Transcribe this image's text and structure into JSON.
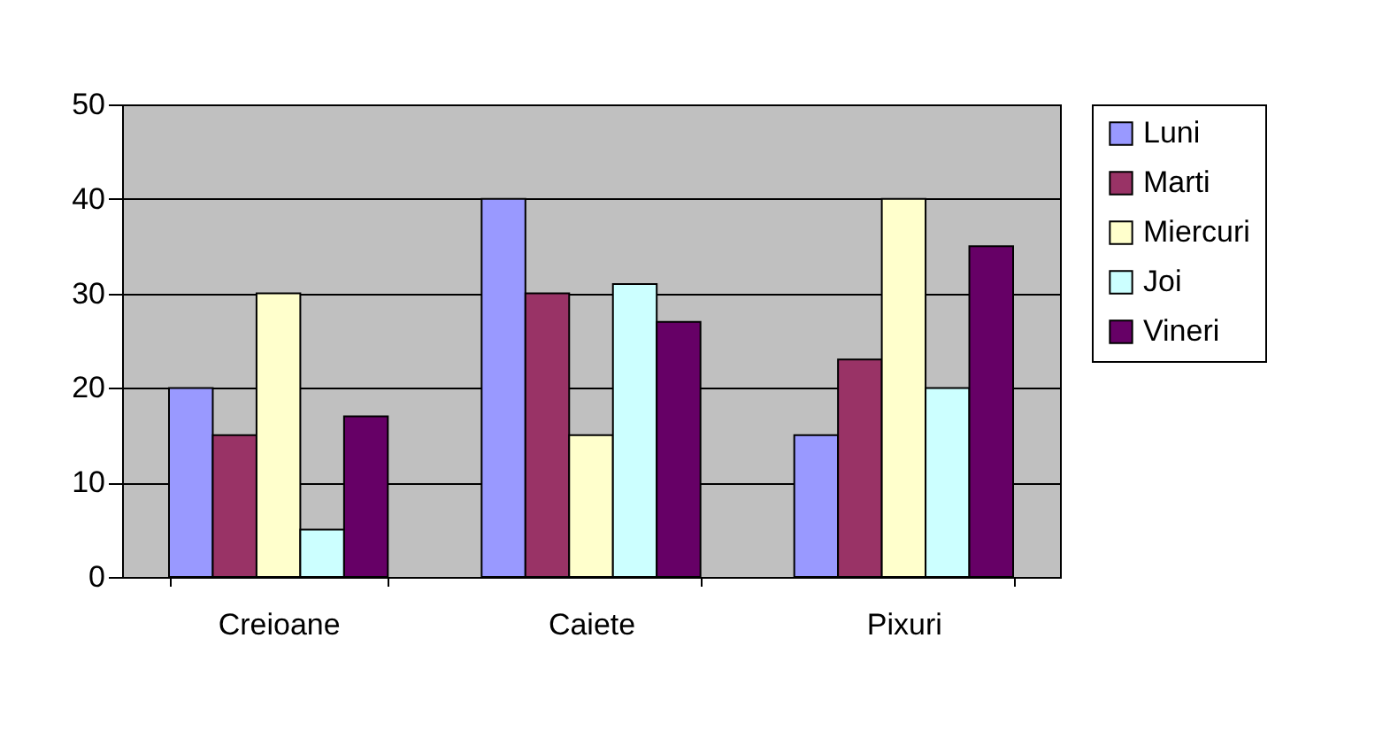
{
  "chart_data": {
    "type": "bar",
    "categories": [
      "Creioane",
      "Caiete",
      "Pixuri"
    ],
    "series": [
      {
        "name": "Luni",
        "color": "#9999ff",
        "values": [
          20,
          40,
          15
        ]
      },
      {
        "name": "Marti",
        "color": "#993366",
        "values": [
          15,
          30,
          23
        ]
      },
      {
        "name": "Miercuri",
        "color": "#ffffcc",
        "values": [
          30,
          15,
          40
        ]
      },
      {
        "name": "Joi",
        "color": "#ccffff",
        "values": [
          5,
          31,
          20
        ]
      },
      {
        "name": "Vineri",
        "color": "#660066",
        "values": [
          17,
          27,
          35
        ]
      }
    ],
    "ylim": [
      0,
      50
    ],
    "yticks": [
      0,
      10,
      20,
      30,
      40,
      50
    ],
    "grid": "y",
    "legend": "right"
  }
}
